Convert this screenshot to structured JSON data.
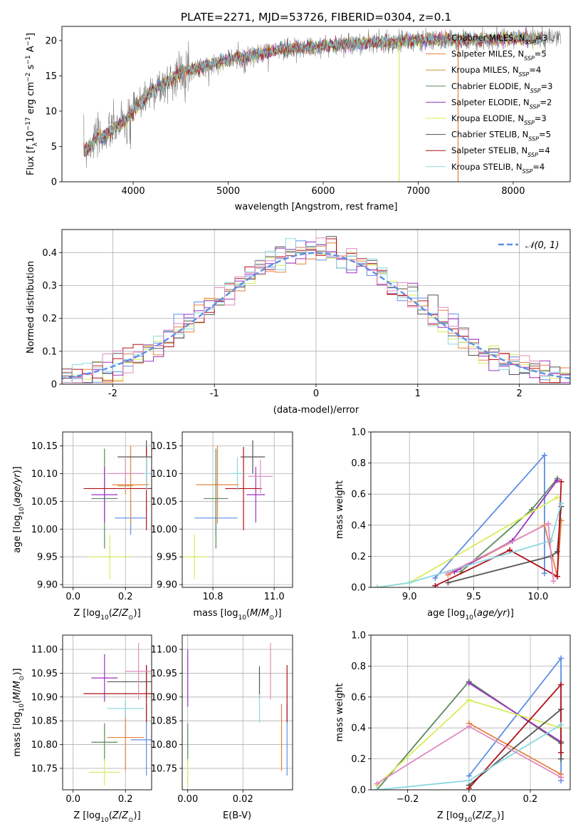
{
  "colors": {
    "Chabrier MILES": "#5b8ee6",
    "Salpeter MILES": "#e6823c",
    "Kroupa MILES": "#c99a2e",
    "Chabrier ELODIE": "#5a8a5a",
    "Salpeter ELODIE": "#9b30c0",
    "Kroupa ELODIE": "#d8ec5a",
    "Chabrier STELIB": "#555555",
    "Salpeter STELIB": "#b0101a",
    "Kroupa STELIB": "#8ad8e0",
    "pink": "#e08cbf",
    "grid": "#b0b0b0"
  },
  "chart_data": [
    {
      "type": "line",
      "title": "PLATE=2271, MJD=53726, FIBERID=0304, z=0.1",
      "xlabel": "wavelength [Angstrom, rest frame]",
      "ylabel": "Flux [f_λ10^{-17} erg cm^{-2} s^{-1} A^{-1}]",
      "xlim": [
        3250,
        8600
      ],
      "ylim": [
        0,
        22
      ],
      "xticks": [
        4000,
        5000,
        6000,
        7000,
        8000
      ],
      "yticks": [
        0,
        5,
        10,
        15,
        20
      ],
      "grid": false,
      "legend_placement": "right",
      "legend": [
        {
          "name": "Chabrier MILES",
          "nssp": "3"
        },
        {
          "name": "Salpeter MILES",
          "nssp": "5"
        },
        {
          "name": "Kroupa MILES",
          "nssp": "4"
        },
        {
          "name": "Chabrier ELODIE",
          "nssp": "3"
        },
        {
          "name": "Salpeter ELODIE",
          "nssp": "2"
        },
        {
          "name": "Kroupa ELODIE",
          "nssp": "3"
        },
        {
          "name": "Chabrier STELIB",
          "nssp": "5"
        },
        {
          "name": "Salpeter STELIB",
          "nssp": "4"
        },
        {
          "name": "Kroupa STELIB",
          "nssp": "4"
        }
      ],
      "continuum": [
        [
          3500,
          4.5
        ],
        [
          3600,
          6
        ],
        [
          3700,
          6.5
        ],
        [
          3800,
          7.5
        ],
        [
          3900,
          8.5
        ],
        [
          4000,
          10
        ],
        [
          4100,
          11.5
        ],
        [
          4200,
          13
        ],
        [
          4300,
          13.5
        ],
        [
          4400,
          14.5
        ],
        [
          4500,
          15.5
        ],
        [
          4600,
          16
        ],
        [
          4700,
          16.2
        ],
        [
          4800,
          16.5
        ],
        [
          4900,
          17
        ],
        [
          5000,
          17.3
        ],
        [
          5100,
          17.6
        ],
        [
          5200,
          17.6
        ],
        [
          5300,
          18
        ],
        [
          5400,
          18.3
        ],
        [
          5500,
          18.6
        ],
        [
          5600,
          18.8
        ],
        [
          5700,
          19
        ],
        [
          5800,
          19.1
        ],
        [
          5900,
          19
        ],
        [
          6000,
          19.2
        ],
        [
          6200,
          19.4
        ],
        [
          6400,
          19.6
        ],
        [
          6600,
          19.7
        ],
        [
          6800,
          19.8
        ],
        [
          7000,
          20
        ],
        [
          7200,
          20.1
        ],
        [
          7400,
          20.1
        ],
        [
          7600,
          20
        ],
        [
          7800,
          20.2
        ],
        [
          8000,
          20.3
        ],
        [
          8200,
          20.3
        ],
        [
          8300,
          20.2
        ]
      ],
      "dropouts": [
        {
          "x": 6800,
          "y": 0
        },
        {
          "x": 7420,
          "y": 0
        }
      ]
    },
    {
      "type": "histogram",
      "xlabel": "(data-model)/error",
      "ylabel": "Normed distribution",
      "xlim": [
        -2.5,
        2.5
      ],
      "ylim": [
        0,
        0.47
      ],
      "xticks": [
        -2,
        -1,
        0,
        1,
        2
      ],
      "yticks": [
        0.0,
        0.1,
        0.2,
        0.3,
        0.4
      ],
      "grid": true,
      "legend_placement": "top-right",
      "legend_label": "𝒩(0, 1)",
      "bin_width": 0.1
    },
    {
      "type": "scatter",
      "xlabel": "Z [log10(Z/Z⊙)]",
      "ylabel": "age  [log10(age/yr)]",
      "xlim": [
        -0.04,
        0.3
      ],
      "ylim": [
        9.895,
        10.175
      ],
      "xticks": [
        0.0,
        0.2
      ],
      "xtick_labels": [
        "0.0",
        "0.2"
      ],
      "yticks": [
        9.9,
        9.95,
        10.0,
        10.05,
        10.1,
        10.15
      ],
      "ytick_labels": [
        "9.90",
        "9.95",
        "10.00",
        "10.05",
        "10.10",
        "10.15"
      ],
      "grid": true,
      "points": [
        {
          "series": "Chabrier MILES",
          "x": 0.22,
          "y": 10.02,
          "xe": 0.06,
          "ye": 0.03
        },
        {
          "series": "Salpeter MILES",
          "x": 0.22,
          "y": 10.08,
          "xe": 0.07,
          "ye": 0.07
        },
        {
          "series": "Kroupa MILES",
          "x": 0.2,
          "y": 10.078,
          "xe": 0.03,
          "ye": 0.015
        },
        {
          "series": "Chabrier ELODIE",
          "x": 0.12,
          "y": 10.055,
          "xe": 0.05,
          "ye": 0.09
        },
        {
          "series": "Salpeter ELODIE",
          "x": 0.12,
          "y": 10.062,
          "xe": 0.05,
          "ye": 0.05
        },
        {
          "series": "Kroupa ELODIE",
          "x": 0.14,
          "y": 9.95,
          "xe": 0.08,
          "ye": 0.04
        },
        {
          "series": "Chabrier STELIB",
          "x": 0.28,
          "y": 10.13,
          "xe": 0.11,
          "ye": 0.03
        },
        {
          "series": "Salpeter STELIB",
          "x": 0.28,
          "y": 10.073,
          "xe": 0.24,
          "ye": 0.075
        },
        {
          "series": "Kroupa STELIB",
          "x": 0.28,
          "y": 10.1,
          "xe": 0.1,
          "ye": 0.03
        },
        {
          "series": "pink",
          "x": 0.2,
          "y": 10.1,
          "xe": 0.07,
          "ye": 0.03
        }
      ]
    },
    {
      "type": "scatter",
      "xlabel": "mass [log10(M/M⊙)]",
      "ylabel": "",
      "xlim": [
        10.7,
        11.06
      ],
      "ylim": [
        9.895,
        10.175
      ],
      "xticks": [
        10.8,
        11.0
      ],
      "xtick_labels": [
        "10.8",
        "11.0"
      ],
      "yticks": [
        9.9,
        9.95,
        10.0,
        10.05,
        10.1,
        10.15
      ],
      "ytick_labels": [
        "9.90",
        "9.95",
        "10.00",
        "10.05",
        "10.10",
        "10.15"
      ],
      "grid": true,
      "points": [
        {
          "series": "Chabrier MILES",
          "x": 10.81,
          "y": 10.02,
          "xe": 0.07,
          "ye": 0.03
        },
        {
          "series": "Salpeter MILES",
          "x": 10.815,
          "y": 10.08,
          "xe": 0.07,
          "ye": 0.07
        },
        {
          "series": "Chabrier ELODIE",
          "x": 10.81,
          "y": 10.055,
          "xe": 0.04,
          "ye": 0.09
        },
        {
          "series": "Salpeter ELODIE",
          "x": 10.94,
          "y": 10.062,
          "xe": 0.03,
          "ye": 0.05
        },
        {
          "series": "Kroupa ELODIE",
          "x": 10.74,
          "y": 9.95,
          "xe": 0.04,
          "ye": 0.04
        },
        {
          "series": "Chabrier STELIB",
          "x": 10.93,
          "y": 10.13,
          "xe": 0.04,
          "ye": 0.03
        },
        {
          "series": "Salpeter STELIB",
          "x": 10.9,
          "y": 10.073,
          "xe": 0.06,
          "ye": 0.075
        },
        {
          "series": "Kroupa STELIB",
          "x": 10.88,
          "y": 10.1,
          "xe": 0.02,
          "ye": 0.03
        },
        {
          "series": "pink",
          "x": 10.955,
          "y": 10.095,
          "xe": 0.04,
          "ye": 0.03
        }
      ]
    },
    {
      "type": "line",
      "xlabel": "age  [log10(age/yr)]",
      "ylabel": "mass weight",
      "xlim": [
        8.7,
        10.25
      ],
      "ylim": [
        0,
        1
      ],
      "xticks": [
        9.0,
        9.5,
        10.0
      ],
      "xtick_labels": [
        "9.0",
        "9.5",
        "10.0"
      ],
      "yticks": [
        0.0,
        0.2,
        0.4,
        0.6,
        0.8,
        1.0
      ],
      "ytick_labels": [
        "0.0",
        "0.2",
        "0.4",
        "0.6",
        "0.8",
        "1.0"
      ],
      "grid": true,
      "series": [
        {
          "key": "Chabrier MILES",
          "x": [
            9.2,
            10.05,
            10.05
          ],
          "y": [
            0.06,
            0.85,
            0.09
          ]
        },
        {
          "key": "Salpeter MILES",
          "x": [
            9.3,
            10.05,
            10.15,
            10.18
          ],
          "y": [
            0.08,
            0.4,
            0.07,
            0.43
          ]
        },
        {
          "key": "Chabrier ELODIE",
          "x": [
            9.4,
            9.95,
            10.15
          ],
          "y": [
            0.1,
            0.5,
            0.7
          ]
        },
        {
          "key": "Salpeter ELODIE",
          "x": [
            9.35,
            9.8,
            10.15
          ],
          "y": [
            0.1,
            0.3,
            0.69
          ]
        },
        {
          "key": "Kroupa ELODIE",
          "x": [
            8.75,
            9.0,
            10.15
          ],
          "y": [
            0.0,
            0.03,
            0.58
          ]
        },
        {
          "key": "Chabrier STELIB",
          "x": [
            9.3,
            10.1,
            10.15,
            10.18
          ],
          "y": [
            0.03,
            0.2,
            0.23,
            0.52
          ]
        },
        {
          "key": "Salpeter STELIB",
          "x": [
            9.2,
            9.78,
            10.15,
            10.18
          ],
          "y": [
            0.01,
            0.24,
            0.07,
            0.68
          ]
        },
        {
          "key": "Kroupa STELIB",
          "x": [
            8.75,
            9.0,
            10.1,
            10.18
          ],
          "y": [
            0.0,
            0.03,
            0.3,
            0.54
          ]
        },
        {
          "key": "pink",
          "x": [
            9.3,
            10.08,
            10.12
          ],
          "y": [
            0.09,
            0.41,
            0.04
          ]
        }
      ]
    },
    {
      "type": "scatter",
      "xlabel": "Z [log10(Z/Z⊙)]",
      "ylabel": "mass [log10(M/M⊙)]",
      "xlim": [
        -0.04,
        0.3
      ],
      "ylim": [
        10.705,
        11.03
      ],
      "xticks": [
        0.0,
        0.2
      ],
      "xtick_labels": [
        "0.0",
        "0.2"
      ],
      "yticks": [
        10.75,
        10.8,
        10.85,
        10.9,
        10.95,
        11.0
      ],
      "ytick_labels": [
        "10.75",
        "10.80",
        "10.85",
        "10.90",
        "10.95",
        "11.00"
      ],
      "grid": true,
      "points": [
        {
          "series": "Chabrier MILES",
          "x": 0.28,
          "y": 10.81,
          "xe": 0.06,
          "ye": 0.075
        },
        {
          "series": "Salpeter MILES",
          "x": 0.2,
          "y": 10.815,
          "xe": 0.07,
          "ye": 0.07
        },
        {
          "series": "Chabrier ELODIE",
          "x": 0.12,
          "y": 10.805,
          "xe": 0.05,
          "ye": 0.04
        },
        {
          "series": "Salpeter ELODIE",
          "x": 0.12,
          "y": 10.94,
          "xe": 0.05,
          "ye": 0.05
        },
        {
          "series": "Kroupa ELODIE",
          "x": 0.12,
          "y": 10.742,
          "xe": 0.06,
          "ye": 0.028
        },
        {
          "series": "Chabrier STELIB",
          "x": 0.28,
          "y": 10.932,
          "xe": 0.15,
          "ye": 0.035
        },
        {
          "series": "Salpeter STELIB",
          "x": 0.28,
          "y": 10.907,
          "xe": 0.24,
          "ye": 0.06
        },
        {
          "series": "Kroupa STELIB",
          "x": 0.2,
          "y": 10.876,
          "xe": 0.07,
          "ye": 0.02
        },
        {
          "series": "pink",
          "x": 0.25,
          "y": 10.954,
          "xe": 0.05,
          "ye": 0.06
        }
      ]
    },
    {
      "type": "scatter",
      "xlabel": "E(B-V)",
      "ylabel": "",
      "xlim": [
        -0.002,
        0.038
      ],
      "ylim": [
        10.705,
        11.03
      ],
      "xticks": [
        0.0,
        0.02
      ],
      "xtick_labels": [
        "0.00",
        "0.02"
      ],
      "yticks": [
        10.75,
        10.8,
        10.85,
        10.9,
        10.95,
        11.0
      ],
      "ytick_labels": [
        "10.75",
        "10.80",
        "10.85",
        "10.90",
        "10.95",
        "11.00"
      ],
      "grid": true,
      "points": [
        {
          "series": "Chabrier MILES",
          "x": 0.036,
          "y": 10.81,
          "xe": 0,
          "ye": 0.075
        },
        {
          "series": "Salpeter MILES",
          "x": 0.034,
          "y": 10.815,
          "xe": 0,
          "ye": 0.07
        },
        {
          "series": "Chabrier ELODIE",
          "x": 0.0,
          "y": 10.805,
          "xe": 0,
          "ye": 0.04
        },
        {
          "series": "Salpeter ELODIE",
          "x": 0.0,
          "y": 10.94,
          "xe": 0,
          "ye": 0.06
        },
        {
          "series": "Kroupa ELODIE",
          "x": 0.0,
          "y": 10.742,
          "xe": 0,
          "ye": 0.028
        },
        {
          "series": "Chabrier STELIB",
          "x": 0.026,
          "y": 10.93,
          "xe": 0,
          "ye": 0.035
        },
        {
          "series": "Salpeter STELIB",
          "x": 0.036,
          "y": 10.907,
          "xe": 0,
          "ye": 0.06
        },
        {
          "series": "Kroupa STELIB",
          "x": 0.026,
          "y": 10.876,
          "xe": 0,
          "ye": 0.03
        },
        {
          "series": "pink",
          "x": 0.03,
          "y": 10.954,
          "xe": 0,
          "ye": 0.06
        }
      ]
    },
    {
      "type": "line",
      "xlabel": "Z [log10(Z/Z⊙)]",
      "ylabel": "mass weight",
      "xlim": [
        -0.32,
        0.33
      ],
      "ylim": [
        0,
        1
      ],
      "xticks": [
        -0.2,
        0.0,
        0.2
      ],
      "xtick_labels": [
        "−0.2",
        "0.0",
        "0.2"
      ],
      "yticks": [
        0.0,
        0.2,
        0.4,
        0.6,
        0.8,
        1.0
      ],
      "ytick_labels": [
        "0.0",
        "0.2",
        "0.4",
        "0.6",
        "0.8",
        "1.0"
      ],
      "grid": true,
      "series": [
        {
          "key": "Chabrier MILES",
          "x": [
            0.0,
            0.3,
            0.3
          ],
          "y": [
            0.09,
            0.85,
            0.06
          ]
        },
        {
          "key": "Salpeter MILES",
          "x": [
            0.0,
            0.3,
            0.3
          ],
          "y": [
            0.43,
            0.1,
            0.08
          ]
        },
        {
          "key": "Chabrier ELODIE",
          "x": [
            -0.3,
            0.0,
            0.3
          ],
          "y": [
            0.0,
            0.7,
            0.3
          ]
        },
        {
          "key": "Salpeter ELODIE",
          "x": [
            0.0,
            0.3
          ],
          "y": [
            0.69,
            0.31
          ]
        },
        {
          "key": "Kroupa ELODIE",
          "x": [
            -0.3,
            0.0,
            0.3
          ],
          "y": [
            0.03,
            0.58,
            0.4
          ]
        },
        {
          "key": "Chabrier STELIB",
          "x": [
            0.0,
            0.3,
            0.3
          ],
          "y": [
            0.03,
            0.52,
            0.2
          ]
        },
        {
          "key": "Salpeter STELIB",
          "x": [
            0.0,
            0.3,
            0.3
          ],
          "y": [
            0.01,
            0.68,
            0.24
          ]
        },
        {
          "key": "Kroupa STELIB",
          "x": [
            -0.3,
            0.0,
            0.3
          ],
          "y": [
            0.0,
            0.06,
            0.42
          ]
        },
        {
          "key": "pink",
          "x": [
            -0.3,
            0.0,
            0.3
          ],
          "y": [
            0.04,
            0.41,
            0.08
          ]
        }
      ]
    }
  ]
}
